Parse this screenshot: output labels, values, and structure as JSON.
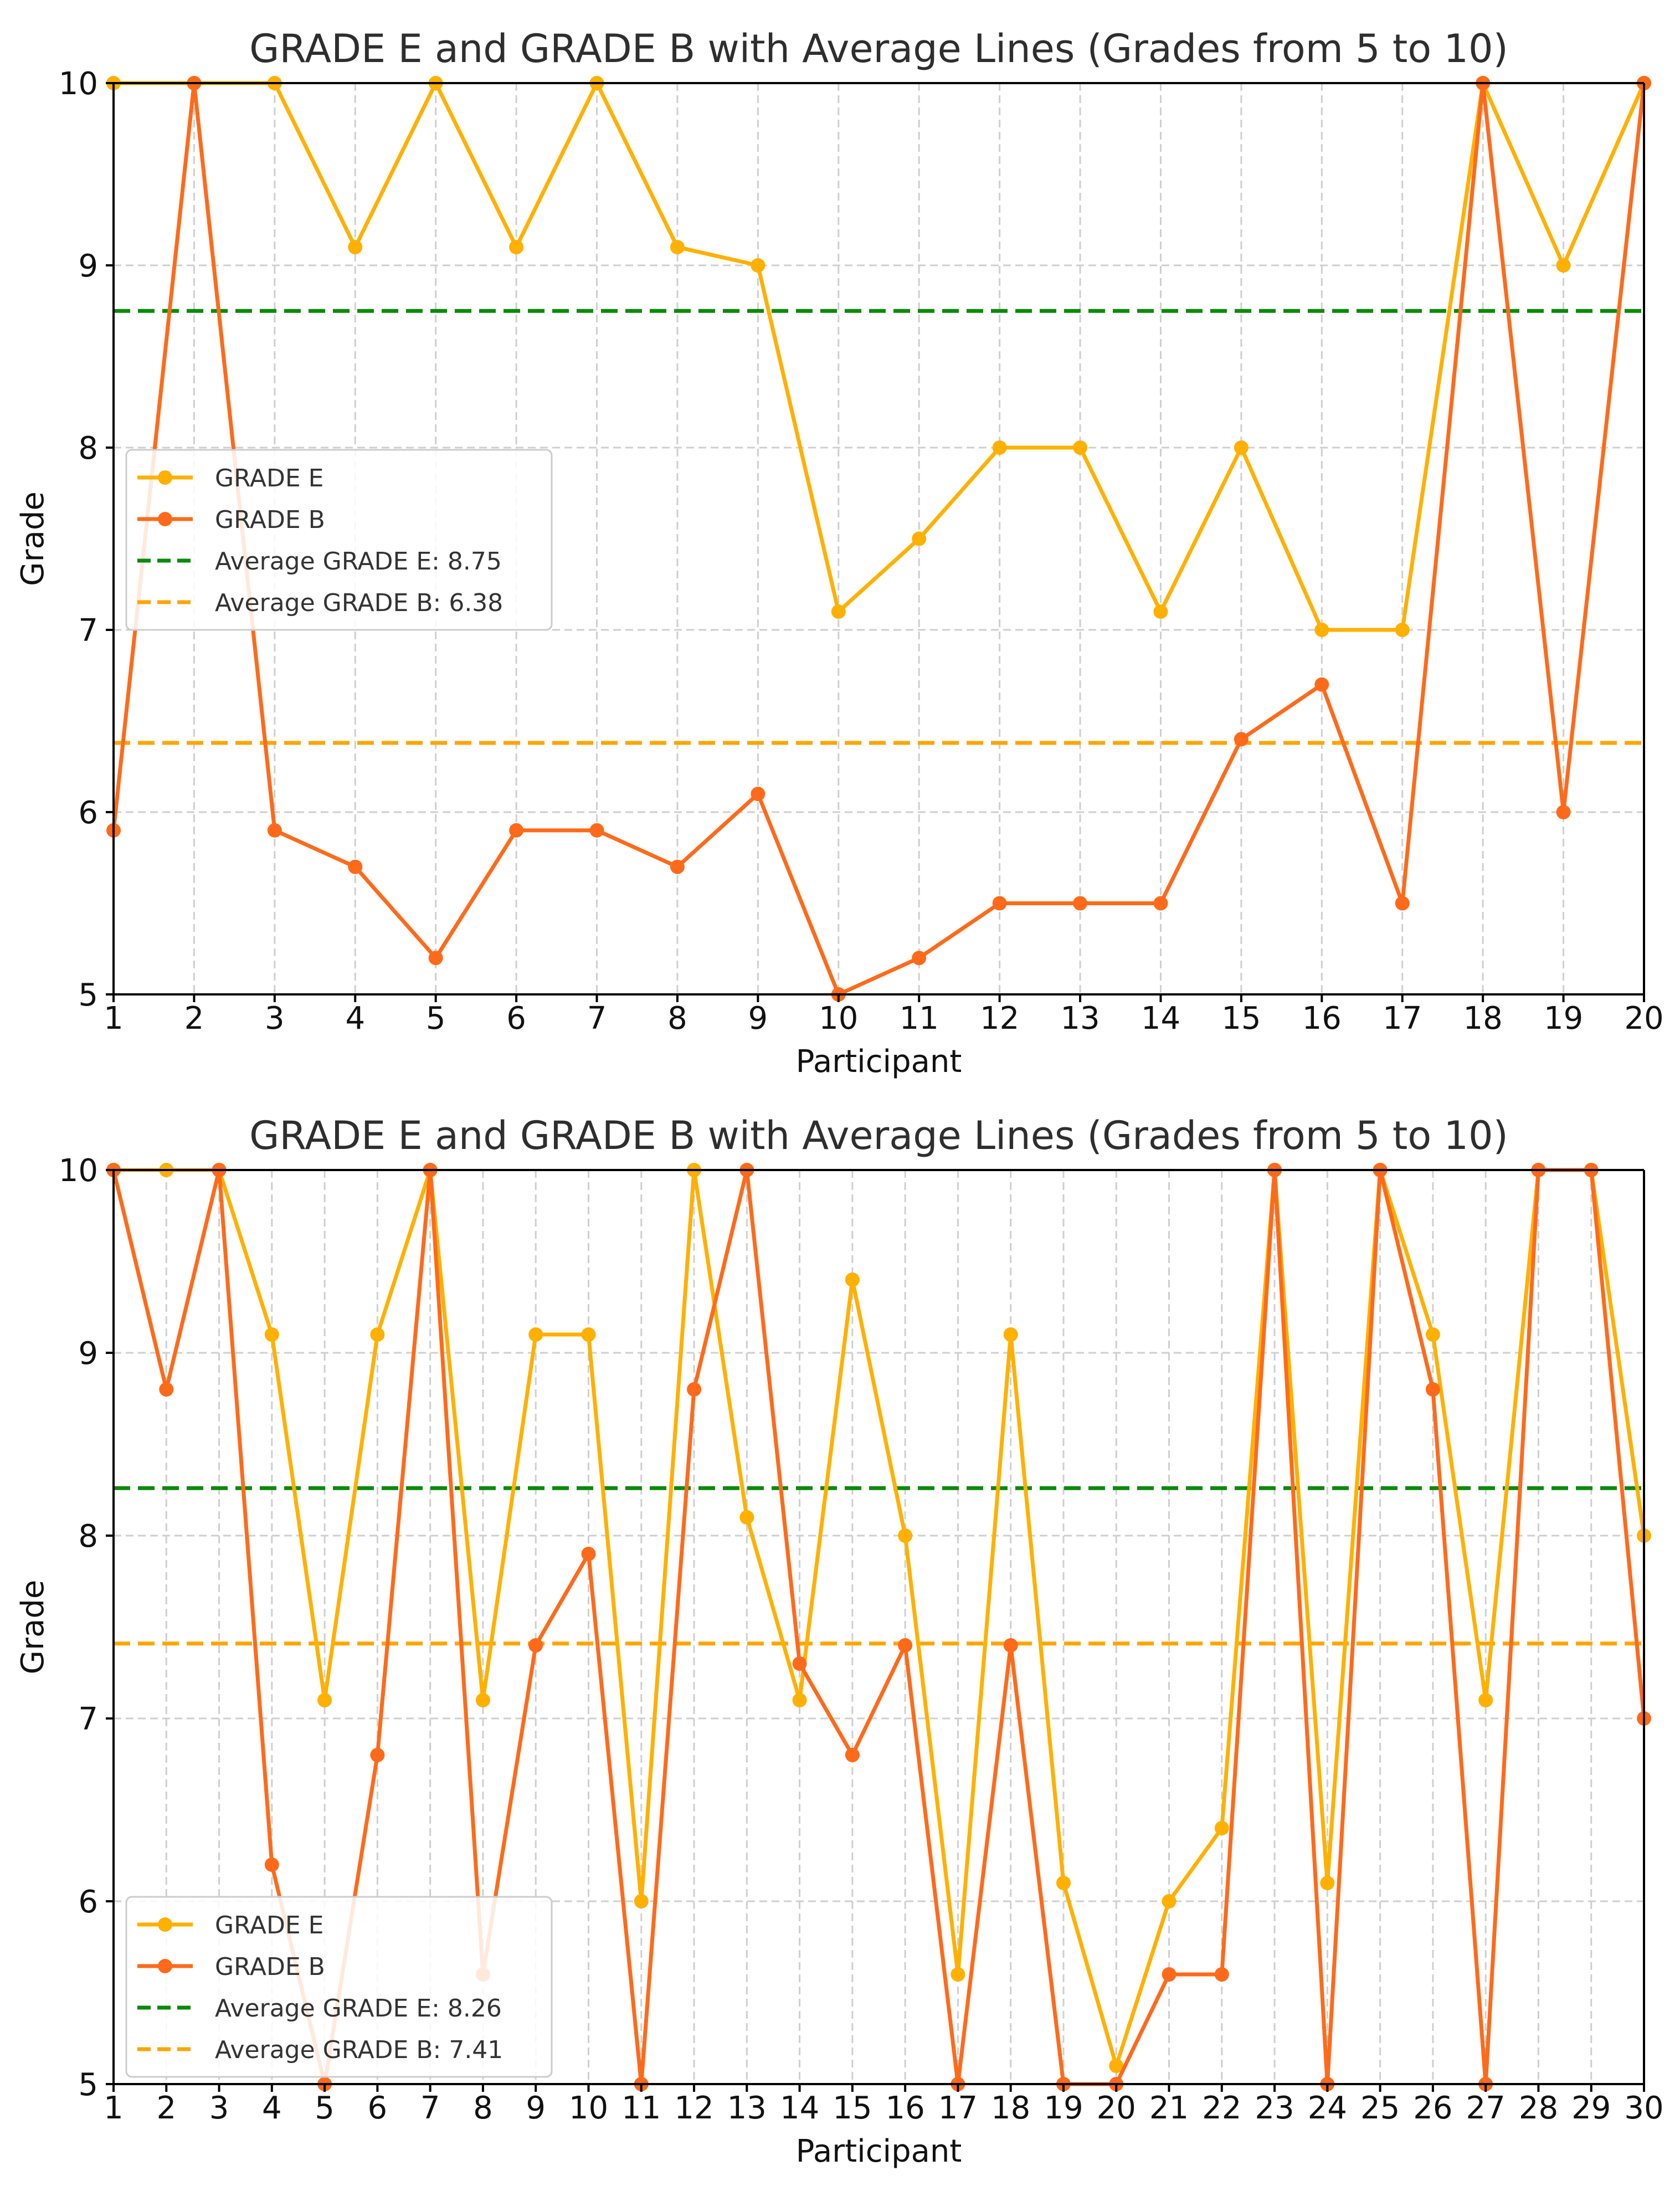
{
  "chart_data": [
    {
      "type": "line",
      "title": "GRADE E and GRADE B with Average Lines (Grades from 5 to 10)",
      "xlabel": "Participant",
      "ylabel": "Grade",
      "ylim": [
        5,
        10
      ],
      "xlim": [
        1,
        20
      ],
      "yticks": [
        "5",
        "6",
        "7",
        "8",
        "9",
        "10"
      ],
      "x": [
        1,
        2,
        3,
        4,
        5,
        6,
        7,
        8,
        9,
        10,
        11,
        12,
        13,
        14,
        15,
        16,
        17,
        18,
        19,
        20
      ],
      "xticks": [
        "1",
        "2",
        "3",
        "4",
        "5",
        "6",
        "7",
        "8",
        "9",
        "10",
        "11",
        "12",
        "13",
        "14",
        "15",
        "16",
        "17",
        "18",
        "19",
        "20"
      ],
      "grid": true,
      "legend_position": "center-left",
      "series": [
        {
          "name": "GRADE E",
          "color": "#FFB000",
          "values": [
            10,
            10,
            10,
            9.1,
            10,
            9.1,
            10,
            9.1,
            9.0,
            7.1,
            7.5,
            8.0,
            8.0,
            7.1,
            8.0,
            7.0,
            7.0,
            10,
            9.0,
            10
          ]
        },
        {
          "name": "GRADE B",
          "color": "#FF6A1A",
          "values": [
            5.9,
            10,
            5.9,
            5.7,
            5.2,
            5.9,
            5.9,
            5.7,
            6.1,
            5.0,
            5.2,
            5.5,
            5.5,
            5.5,
            6.4,
            6.7,
            5.5,
            10,
            6.0,
            10
          ]
        }
      ],
      "averages": [
        {
          "name": "Average GRADE E: 8.75",
          "value": 8.75,
          "color": "#0A8A0A"
        },
        {
          "name": "Average GRADE B: 6.38",
          "value": 6.38,
          "color": "#FFA500"
        }
      ]
    },
    {
      "type": "line",
      "title": "GRADE E and GRADE B with Average Lines (Grades from 5 to 10)",
      "xlabel": "Participant",
      "ylabel": "Grade",
      "ylim": [
        5,
        10
      ],
      "xlim": [
        1,
        30
      ],
      "yticks": [
        "5",
        "6",
        "7",
        "8",
        "9",
        "10"
      ],
      "x": [
        1,
        2,
        3,
        4,
        5,
        6,
        7,
        8,
        9,
        10,
        11,
        12,
        13,
        14,
        15,
        16,
        17,
        18,
        19,
        20,
        21,
        22,
        23,
        24,
        25,
        26,
        27,
        28,
        29,
        30
      ],
      "xticks": [
        "1",
        "2",
        "3",
        "4",
        "5",
        "6",
        "7",
        "8",
        "9",
        "10",
        "11",
        "12",
        "13",
        "14",
        "15",
        "16",
        "17",
        "18",
        "19",
        "20",
        "21",
        "22",
        "23",
        "24",
        "25",
        "26",
        "27",
        "28",
        "29",
        "30"
      ],
      "grid": true,
      "legend_position": "lower-left",
      "series": [
        {
          "name": "GRADE E",
          "color": "#FFB000",
          "values": [
            10,
            10,
            10,
            9.1,
            7.1,
            9.1,
            10,
            7.1,
            9.1,
            9.1,
            6.0,
            10,
            8.1,
            7.1,
            9.4,
            8.0,
            5.6,
            9.1,
            6.1,
            5.1,
            6.0,
            6.4,
            10,
            6.1,
            10,
            9.1,
            7.1,
            10,
            10,
            8.0
          ]
        },
        {
          "name": "GRADE B",
          "color": "#FF6A1A",
          "values": [
            10,
            8.8,
            10,
            6.2,
            5.0,
            6.8,
            10,
            5.6,
            7.4,
            7.9,
            5.0,
            8.8,
            10,
            7.3,
            6.8,
            7.4,
            5.0,
            7.4,
            5.0,
            5.0,
            5.6,
            5.6,
            10,
            5.0,
            10,
            8.8,
            5.0,
            10,
            10,
            7.0
          ]
        }
      ],
      "averages": [
        {
          "name": "Average GRADE E: 8.26",
          "value": 8.26,
          "color": "#0A8A0A"
        },
        {
          "name": "Average GRADE B: 7.41",
          "value": 7.41,
          "color": "#FFA500"
        }
      ]
    }
  ]
}
